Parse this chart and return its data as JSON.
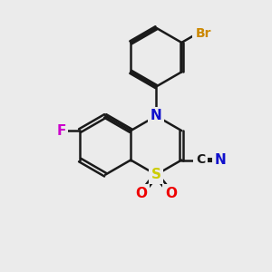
{
  "bg_color": "#ebebeb",
  "bond_color": "#1a1a1a",
  "bond_width": 1.8,
  "atom_colors": {
    "N": "#1010cc",
    "S": "#cccc00",
    "O": "#ee0000",
    "F": "#cc00cc",
    "Br": "#cc8800",
    "C": "#1a1a1a",
    "N_nitrile": "#1010cc"
  },
  "font_size": 11,
  "dbo": 0.07
}
